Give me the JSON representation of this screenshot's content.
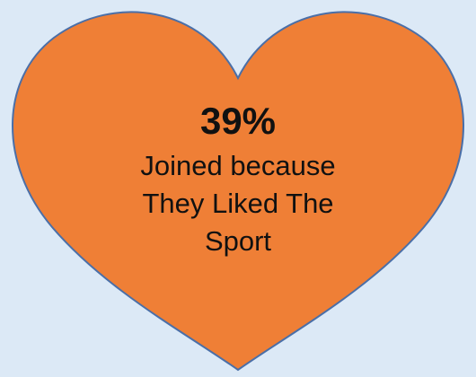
{
  "heart": {
    "fill_color": "#ef7f36",
    "stroke_color": "#4a6fa8",
    "background_color": "#dce9f6",
    "icon": "heart-shape"
  },
  "text": {
    "stat": "39%",
    "caption_lines": [
      "Joined because",
      "They Liked The",
      "Sport"
    ]
  }
}
